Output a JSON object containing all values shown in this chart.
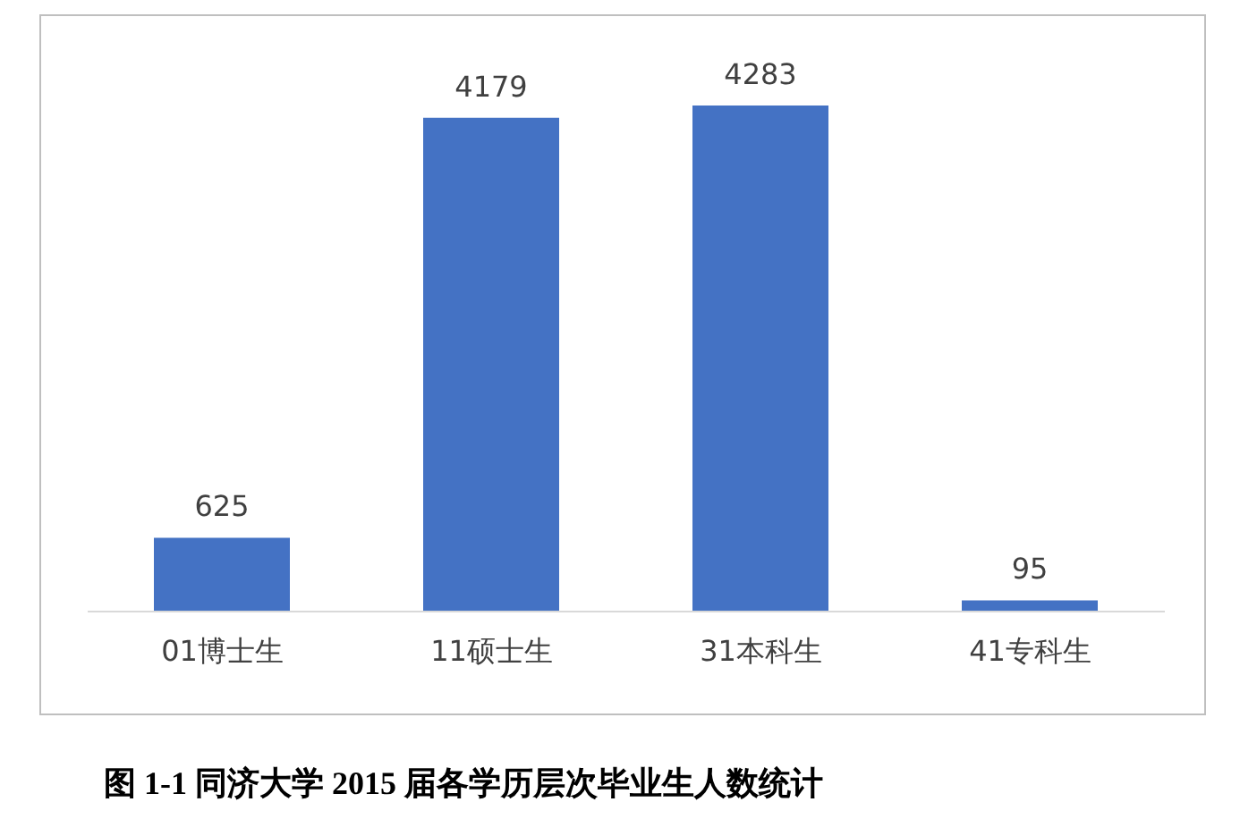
{
  "chart_data": {
    "type": "bar",
    "title": "图 1-1  同济大学 2015 届各学历层次毕业生人数统计",
    "categories": [
      "01博士生",
      "11硕士生",
      "31本科生",
      "41专科生"
    ],
    "values": [
      625,
      4179,
      4283,
      95
    ],
    "color": "#4472c4",
    "data_labels": true,
    "grid": false,
    "legend": false
  }
}
